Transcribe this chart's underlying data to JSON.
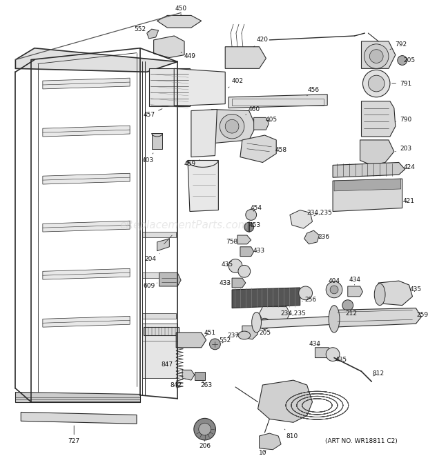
{
  "background_color": "#ffffff",
  "line_color": "#2a2a2a",
  "text_color": "#111111",
  "watermark": "eReplacementParts.com",
  "art_no": "(ART NO. WR18811 C2)",
  "figsize": [
    6.2,
    6.61
  ],
  "dpi": 100
}
